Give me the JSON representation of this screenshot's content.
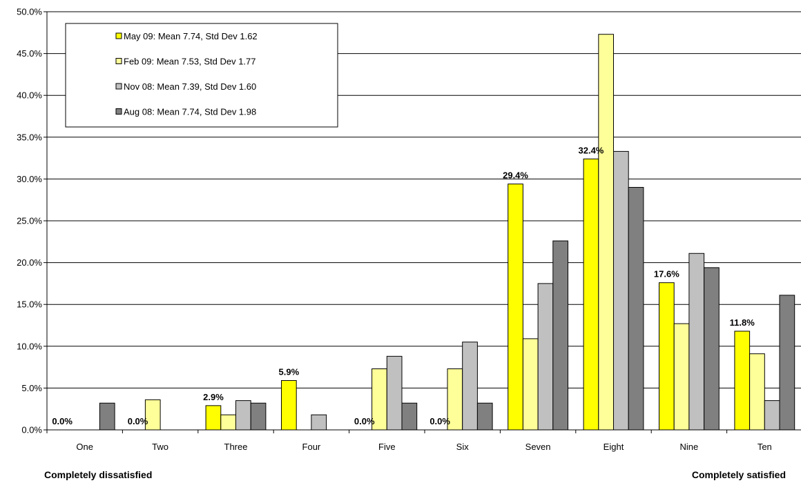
{
  "chart_data": {
    "type": "bar",
    "categories": [
      "One",
      "Two",
      "Three",
      "Four",
      "Five",
      "Six",
      "Seven",
      "Eight",
      "Nine",
      "Ten"
    ],
    "series": [
      {
        "name": "May 09: Mean 7.74, Std Dev 1.62",
        "color": "#FFFF00",
        "values": [
          0.0,
          0.0,
          2.9,
          5.9,
          0.0,
          0.0,
          29.4,
          32.4,
          17.6,
          11.8
        ]
      },
      {
        "name": "Feb 09: Mean 7.53, Std Dev 1.77",
        "color": "#FFFF99",
        "values": [
          0.0,
          3.6,
          1.8,
          0.0,
          7.3,
          7.3,
          10.9,
          47.3,
          12.7,
          9.1
        ]
      },
      {
        "name": "Nov 08: Mean 7.39, Std Dev 1.60",
        "color": "#C0C0C0",
        "values": [
          0.0,
          0.0,
          3.5,
          1.8,
          8.8,
          10.5,
          17.5,
          33.3,
          21.1,
          3.5
        ]
      },
      {
        "name": "Aug 08: Mean 7.74, Std Dev 1.98",
        "color": "#808080",
        "values": [
          3.2,
          0.0,
          3.2,
          0.0,
          3.2,
          3.2,
          22.6,
          29.0,
          19.4,
          16.1
        ]
      }
    ],
    "data_labels": [
      "0.0%",
      "0.0%",
      "2.9%",
      "5.9%",
      "0.0%",
      "0.0%",
      "29.4%",
      "32.4%",
      "17.6%",
      "11.8%"
    ],
    "y_ticks": [
      "0.0%",
      "5.0%",
      "10.0%",
      "15.0%",
      "20.0%",
      "25.0%",
      "30.0%",
      "35.0%",
      "40.0%",
      "45.0%",
      "50.0%"
    ],
    "ylim": [
      0,
      50
    ],
    "grid": true,
    "legend_position": "top-left",
    "xlabel": "",
    "ylabel": ""
  },
  "footer": {
    "left": "Completely dissatisfied",
    "right": "Completely satisfied"
  }
}
